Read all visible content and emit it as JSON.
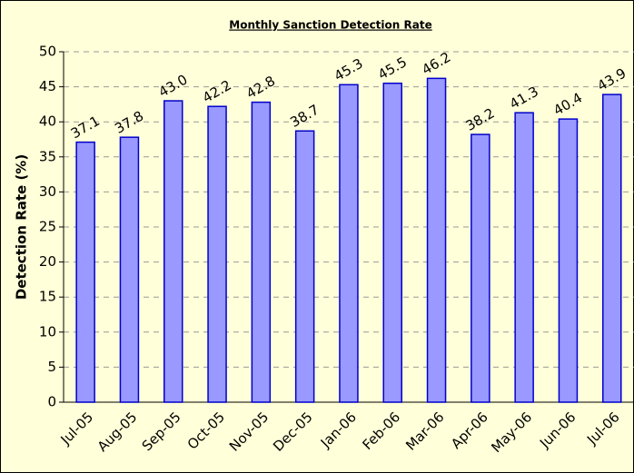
{
  "chart_data": {
    "type": "bar",
    "title": "Monthly Sanction Detection Rate",
    "y_label": "Detection Rate (%)",
    "categories": [
      "Jul-05",
      "Aug-05",
      "Sep-05",
      "Oct-05",
      "Nov-05",
      "Dec-05",
      "Jan-06",
      "Feb-06",
      "Mar-06",
      "Apr-06",
      "May-06",
      "Jun-06",
      "Jul-06"
    ],
    "values": [
      37.1,
      37.8,
      43.0,
      42.2,
      42.8,
      38.7,
      45.3,
      45.5,
      46.2,
      38.2,
      41.3,
      40.4,
      43.9
    ],
    "value_labels": [
      "37.1",
      "37.8",
      "43.0",
      "42.2",
      "42.8",
      "38.7",
      "45.3",
      "45.5",
      "46.2",
      "38.2",
      "41.3",
      "40.4",
      "43.9"
    ],
    "color": "#9999ff",
    "ylim": [
      0,
      50
    ],
    "yticks": [
      0,
      5,
      10,
      15,
      20,
      25,
      30,
      35,
      40,
      45,
      50
    ],
    "grid": true
  }
}
